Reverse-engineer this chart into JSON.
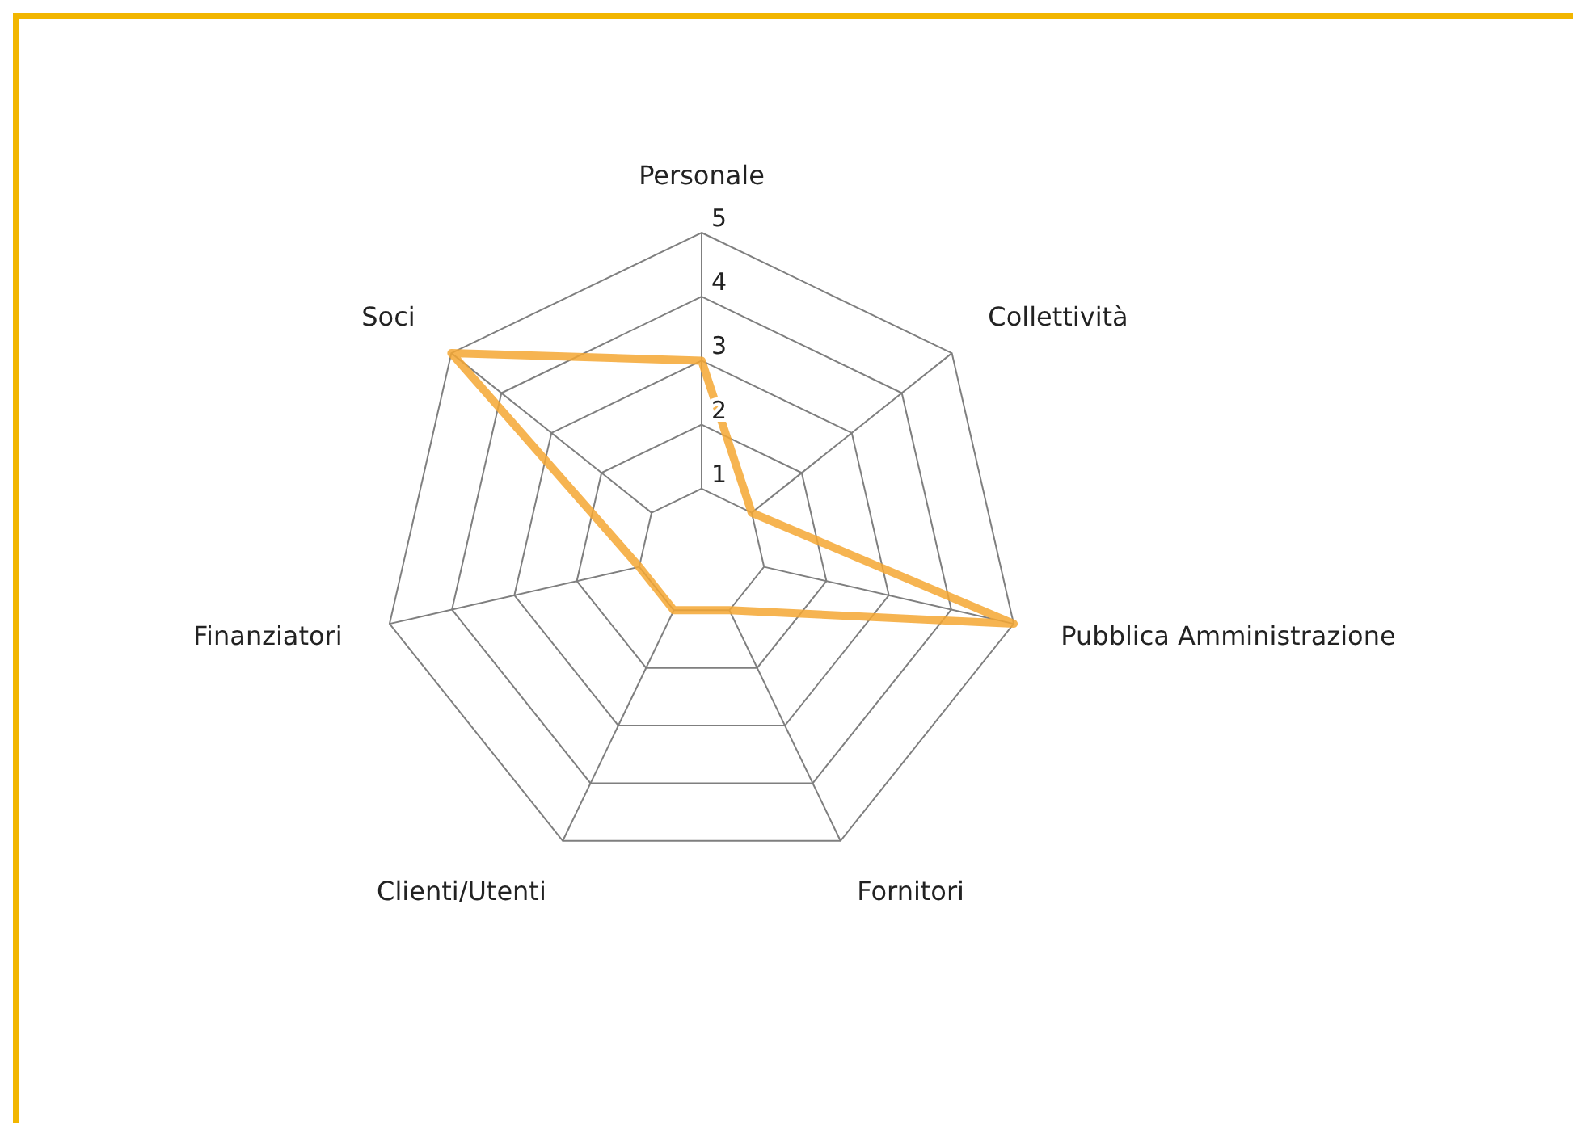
{
  "chart_data": {
    "type": "radar",
    "categories": [
      "Personale",
      "Collettività",
      "Pubblica Amministrazione",
      "Fornitori",
      "Clienti/Utenti",
      "Finanziatori",
      "Soci"
    ],
    "series": [
      {
        "color": "#f5a733",
        "values": [
          3,
          1,
          5,
          1,
          1,
          1,
          5
        ]
      }
    ],
    "ylim": [
      0,
      5
    ],
    "yticks": [
      1,
      2,
      3,
      4,
      5
    ],
    "grid": true
  }
}
